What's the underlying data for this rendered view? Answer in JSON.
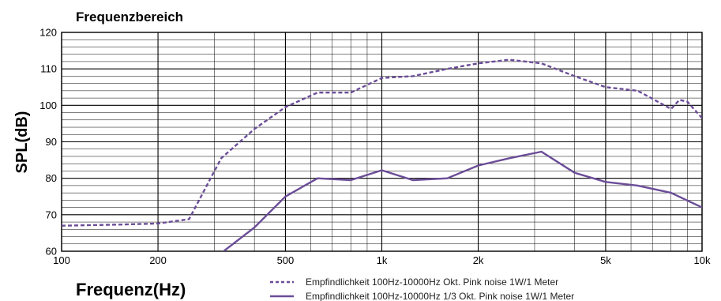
{
  "chart_data": {
    "type": "line",
    "title": "Frequenzbereich",
    "xlabel": "Frequenz(Hz)",
    "ylabel": "SPL(dB)",
    "xscale": "log",
    "xlim": [
      100,
      10000
    ],
    "ylim": [
      60,
      120
    ],
    "grid": true,
    "x_ticks": [
      {
        "value": 100,
        "label": "100"
      },
      {
        "value": 200,
        "label": "200"
      },
      {
        "value": 500,
        "label": "500"
      },
      {
        "value": 1000,
        "label": "1k"
      },
      {
        "value": 2000,
        "label": "2k"
      },
      {
        "value": 5000,
        "label": "5k"
      },
      {
        "value": 10000,
        "label": "10k"
      }
    ],
    "y_ticks": [
      60,
      70,
      80,
      90,
      100,
      110,
      120
    ],
    "series_color": "#6b4d98",
    "series": [
      {
        "name": "Empfindlichkeit 100Hz-10000Hz Okt. Pink noise 1W/1 Meter",
        "style": "dashed",
        "points": [
          [
            100,
            67
          ],
          [
            150,
            67.3
          ],
          [
            200,
            67.6
          ],
          [
            250,
            68.8
          ],
          [
            315,
            85.5
          ],
          [
            400,
            93.5
          ],
          [
            500,
            99.5
          ],
          [
            630,
            103.5
          ],
          [
            800,
            103.5
          ],
          [
            1000,
            107.5
          ],
          [
            1250,
            108
          ],
          [
            1600,
            110
          ],
          [
            2000,
            111.5
          ],
          [
            2500,
            112.5
          ],
          [
            3150,
            111.5
          ],
          [
            4000,
            108
          ],
          [
            5000,
            105
          ],
          [
            6300,
            104
          ],
          [
            8000,
            99
          ],
          [
            8500,
            101.5
          ],
          [
            9000,
            101
          ],
          [
            10000,
            96.5
          ]
        ]
      },
      {
        "name": "Empfindlichkeit 100Hz-10000Hz 1/3 Okt. Pink noise 1W/1 Meter",
        "style": "solid",
        "points": [
          [
            315,
            59.5
          ],
          [
            400,
            66.5
          ],
          [
            500,
            75
          ],
          [
            630,
            80
          ],
          [
            800,
            79.5
          ],
          [
            1000,
            82.2
          ],
          [
            1250,
            79.5
          ],
          [
            1600,
            80
          ],
          [
            2000,
            83.5
          ],
          [
            2500,
            85.5
          ],
          [
            3150,
            87.3
          ],
          [
            4000,
            81.5
          ],
          [
            5000,
            79
          ],
          [
            6300,
            78
          ],
          [
            8000,
            76
          ],
          [
            10000,
            72
          ]
        ]
      }
    ],
    "legend_position": "bottom"
  }
}
